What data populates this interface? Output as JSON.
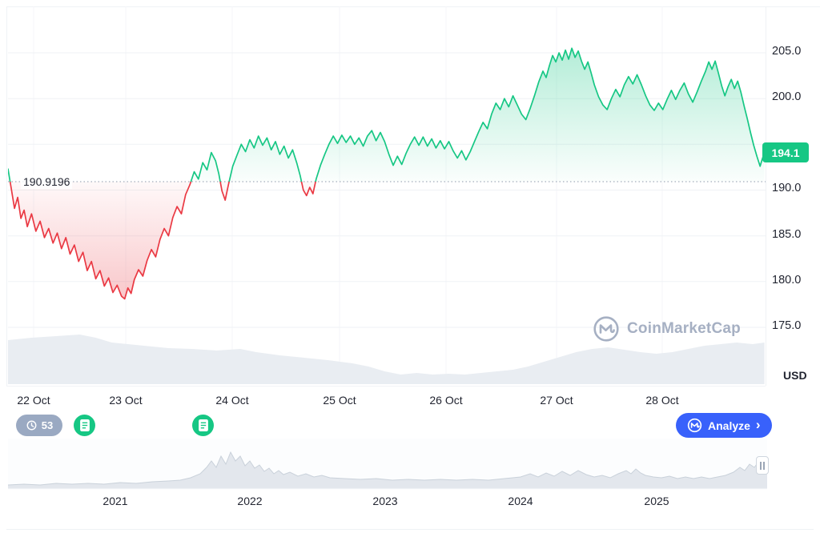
{
  "colors": {
    "green": "#16c784",
    "red": "#ea3943",
    "blue": "#3861fb",
    "pill_gray": "#9aa9c2",
    "grid": "#eff2f5",
    "axis_text": "#222531",
    "muted_text": "#a6b0c3",
    "volume_fill": "#e9edf2",
    "nav_fill": "#e3e7ed",
    "nav_stroke": "#c9d1da"
  },
  "chart": {
    "baseline_label": "190.9196",
    "current_price": "194.1",
    "unit": "USD",
    "watermark": "CoinMarketCap"
  },
  "toolbar": {
    "history_count": "53",
    "analyze_label": "Analyze",
    "analyze_chevron": "›"
  },
  "chart_data": {
    "type": "line",
    "title": "",
    "unit": "USD",
    "baseline": 190.9196,
    "current_price": 194.1,
    "ylim": [
      173,
      208
    ],
    "x_unit": "days since 22 Oct",
    "x_tick_labels": [
      "22 Oct",
      "23 Oct",
      "24 Oct",
      "25 Oct",
      "26 Oct",
      "27 Oct",
      "28 Oct"
    ],
    "y_ticks": [
      {
        "value": 205,
        "label": "205.0"
      },
      {
        "value": 200,
        "label": "200.0"
      },
      {
        "value": 190,
        "label": "190.0"
      },
      {
        "value": 185,
        "label": "185.0"
      },
      {
        "value": 180,
        "label": "180.0"
      },
      {
        "value": 175,
        "label": "175.0"
      }
    ],
    "y_grid_values": [
      205,
      200,
      195,
      190,
      185,
      180,
      175
    ],
    "price_points": [
      [
        -0.1,
        192.3
      ],
      [
        -0.07,
        190.2
      ],
      [
        -0.04,
        188.0
      ],
      [
        -0.01,
        189.2
      ],
      [
        0.02,
        186.9
      ],
      [
        0.05,
        187.8
      ],
      [
        0.08,
        186.0
      ],
      [
        0.12,
        187.4
      ],
      [
        0.16,
        185.5
      ],
      [
        0.2,
        186.6
      ],
      [
        0.24,
        184.8
      ],
      [
        0.28,
        185.8
      ],
      [
        0.32,
        184.2
      ],
      [
        0.36,
        185.3
      ],
      [
        0.4,
        183.6
      ],
      [
        0.44,
        184.8
      ],
      [
        0.48,
        183.0
      ],
      [
        0.52,
        184.0
      ],
      [
        0.56,
        182.2
      ],
      [
        0.6,
        183.2
      ],
      [
        0.64,
        181.2
      ],
      [
        0.68,
        182.2
      ],
      [
        0.72,
        180.3
      ],
      [
        0.76,
        181.2
      ],
      [
        0.8,
        179.5
      ],
      [
        0.84,
        180.4
      ],
      [
        0.88,
        178.8
      ],
      [
        0.92,
        179.6
      ],
      [
        0.96,
        178.4
      ],
      [
        0.99,
        178.1
      ],
      [
        1.02,
        179.3
      ],
      [
        1.05,
        178.7
      ],
      [
        1.08,
        180.2
      ],
      [
        1.12,
        181.3
      ],
      [
        1.16,
        180.6
      ],
      [
        1.2,
        182.3
      ],
      [
        1.24,
        183.5
      ],
      [
        1.28,
        182.7
      ],
      [
        1.32,
        184.6
      ],
      [
        1.36,
        185.8
      ],
      [
        1.4,
        185.0
      ],
      [
        1.44,
        187.0
      ],
      [
        1.48,
        188.2
      ],
      [
        1.52,
        187.4
      ],
      [
        1.56,
        189.5
      ],
      [
        1.6,
        190.6
      ],
      [
        1.64,
        192.0
      ],
      [
        1.68,
        191.2
      ],
      [
        1.72,
        193.0
      ],
      [
        1.76,
        192.2
      ],
      [
        1.8,
        194.1
      ],
      [
        1.84,
        193.2
      ],
      [
        1.87,
        191.8
      ],
      [
        1.9,
        189.9
      ],
      [
        1.93,
        188.9
      ],
      [
        1.96,
        190.6
      ],
      [
        2.0,
        192.6
      ],
      [
        2.04,
        193.8
      ],
      [
        2.08,
        195.0
      ],
      [
        2.12,
        194.2
      ],
      [
        2.16,
        195.5
      ],
      [
        2.2,
        194.6
      ],
      [
        2.24,
        195.9
      ],
      [
        2.28,
        194.9
      ],
      [
        2.32,
        195.7
      ],
      [
        2.36,
        194.4
      ],
      [
        2.4,
        195.3
      ],
      [
        2.44,
        193.9
      ],
      [
        2.48,
        194.8
      ],
      [
        2.52,
        193.5
      ],
      [
        2.56,
        194.4
      ],
      [
        2.6,
        192.9
      ],
      [
        2.63,
        191.6
      ],
      [
        2.66,
        190.0
      ],
      [
        2.69,
        189.4
      ],
      [
        2.72,
        190.3
      ],
      [
        2.75,
        189.6
      ],
      [
        2.78,
        191.2
      ],
      [
        2.82,
        192.7
      ],
      [
        2.86,
        193.9
      ],
      [
        2.9,
        195.0
      ],
      [
        2.94,
        195.9
      ],
      [
        2.98,
        195.1
      ],
      [
        3.02,
        196.0
      ],
      [
        3.06,
        195.2
      ],
      [
        3.1,
        195.9
      ],
      [
        3.14,
        195.0
      ],
      [
        3.18,
        195.7
      ],
      [
        3.22,
        194.8
      ],
      [
        3.26,
        195.9
      ],
      [
        3.3,
        196.5
      ],
      [
        3.34,
        195.4
      ],
      [
        3.38,
        196.3
      ],
      [
        3.42,
        195.3
      ],
      [
        3.46,
        193.9
      ],
      [
        3.5,
        192.7
      ],
      [
        3.54,
        193.7
      ],
      [
        3.58,
        192.8
      ],
      [
        3.62,
        194.0
      ],
      [
        3.66,
        195.0
      ],
      [
        3.7,
        195.8
      ],
      [
        3.74,
        194.9
      ],
      [
        3.78,
        195.8
      ],
      [
        3.82,
        194.8
      ],
      [
        3.86,
        195.6
      ],
      [
        3.9,
        194.6
      ],
      [
        3.94,
        195.4
      ],
      [
        3.98,
        194.5
      ],
      [
        4.02,
        195.3
      ],
      [
        4.06,
        194.3
      ],
      [
        4.1,
        193.5
      ],
      [
        4.14,
        194.3
      ],
      [
        4.18,
        193.3
      ],
      [
        4.22,
        194.2
      ],
      [
        4.26,
        195.3
      ],
      [
        4.3,
        196.4
      ],
      [
        4.34,
        197.4
      ],
      [
        4.38,
        196.7
      ],
      [
        4.42,
        198.3
      ],
      [
        4.46,
        199.5
      ],
      [
        4.5,
        198.8
      ],
      [
        4.54,
        200.0
      ],
      [
        4.58,
        199.1
      ],
      [
        4.62,
        200.3
      ],
      [
        4.66,
        199.3
      ],
      [
        4.7,
        198.3
      ],
      [
        4.74,
        197.7
      ],
      [
        4.78,
        198.9
      ],
      [
        4.82,
        200.3
      ],
      [
        4.86,
        201.8
      ],
      [
        4.9,
        203.0
      ],
      [
        4.93,
        202.3
      ],
      [
        4.96,
        203.6
      ],
      [
        4.99,
        204.7
      ],
      [
        5.02,
        204.0
      ],
      [
        5.05,
        205.0
      ],
      [
        5.08,
        204.2
      ],
      [
        5.11,
        205.3
      ],
      [
        5.14,
        204.3
      ],
      [
        5.17,
        205.5
      ],
      [
        5.2,
        204.5
      ],
      [
        5.23,
        205.2
      ],
      [
        5.26,
        204.1
      ],
      [
        5.29,
        203.2
      ],
      [
        5.32,
        204.0
      ],
      [
        5.35,
        202.8
      ],
      [
        5.38,
        201.5
      ],
      [
        5.42,
        200.2
      ],
      [
        5.46,
        199.3
      ],
      [
        5.5,
        198.8
      ],
      [
        5.54,
        200.0
      ],
      [
        5.58,
        201.0
      ],
      [
        5.62,
        200.2
      ],
      [
        5.66,
        201.5
      ],
      [
        5.7,
        202.4
      ],
      [
        5.74,
        201.6
      ],
      [
        5.78,
        202.6
      ],
      [
        5.82,
        201.5
      ],
      [
        5.86,
        200.3
      ],
      [
        5.9,
        199.3
      ],
      [
        5.94,
        198.7
      ],
      [
        5.98,
        199.5
      ],
      [
        6.02,
        198.8
      ],
      [
        6.06,
        199.9
      ],
      [
        6.1,
        200.9
      ],
      [
        6.14,
        199.9
      ],
      [
        6.18,
        200.9
      ],
      [
        6.22,
        201.7
      ],
      [
        6.26,
        200.5
      ],
      [
        6.3,
        199.6
      ],
      [
        6.34,
        200.7
      ],
      [
        6.38,
        201.9
      ],
      [
        6.42,
        203.0
      ],
      [
        6.45,
        204.0
      ],
      [
        6.48,
        203.2
      ],
      [
        6.51,
        204.1
      ],
      [
        6.54,
        202.8
      ],
      [
        6.57,
        201.4
      ],
      [
        6.6,
        200.3
      ],
      [
        6.63,
        201.3
      ],
      [
        6.66,
        202.1
      ],
      [
        6.69,
        201.1
      ],
      [
        6.72,
        201.9
      ],
      [
        6.75,
        200.7
      ],
      [
        6.78,
        199.2
      ],
      [
        6.81,
        197.8
      ],
      [
        6.84,
        196.3
      ],
      [
        6.87,
        194.9
      ],
      [
        6.9,
        193.7
      ],
      [
        6.93,
        192.6
      ],
      [
        6.95,
        193.4
      ],
      [
        6.97,
        194.1
      ]
    ],
    "volume_profile": [
      [
        -0.1,
        55
      ],
      [
        0.12,
        58
      ],
      [
        0.35,
        60
      ],
      [
        0.57,
        62
      ],
      [
        0.72,
        58
      ],
      [
        0.87,
        52
      ],
      [
        1.02,
        50
      ],
      [
        1.17,
        48
      ],
      [
        1.4,
        45
      ],
      [
        1.62,
        44
      ],
      [
        1.85,
        42
      ],
      [
        2.07,
        44
      ],
      [
        2.22,
        40
      ],
      [
        2.44,
        36
      ],
      [
        2.67,
        33
      ],
      [
        2.89,
        30
      ],
      [
        3.12,
        26
      ],
      [
        3.27,
        22
      ],
      [
        3.42,
        16
      ],
      [
        3.57,
        12
      ],
      [
        3.72,
        14
      ],
      [
        3.87,
        12
      ],
      [
        4.02,
        13
      ],
      [
        4.17,
        12
      ],
      [
        4.32,
        14
      ],
      [
        4.47,
        16
      ],
      [
        4.62,
        18
      ],
      [
        4.76,
        22
      ],
      [
        4.91,
        28
      ],
      [
        5.06,
        34
      ],
      [
        5.21,
        40
      ],
      [
        5.36,
        44
      ],
      [
        5.51,
        46
      ],
      [
        5.66,
        43
      ],
      [
        5.81,
        40
      ],
      [
        5.96,
        38
      ],
      [
        6.11,
        40
      ],
      [
        6.26,
        44
      ],
      [
        6.41,
        48
      ],
      [
        6.56,
        50
      ],
      [
        6.71,
        52
      ],
      [
        6.86,
        50
      ],
      [
        6.97,
        52
      ]
    ],
    "navigator": {
      "years": [
        "2021",
        "2022",
        "2023",
        "2024",
        "2025"
      ],
      "profile": [
        [
          0,
          4
        ],
        [
          20,
          5
        ],
        [
          40,
          4
        ],
        [
          60,
          6
        ],
        [
          80,
          5
        ],
        [
          100,
          6
        ],
        [
          120,
          5
        ],
        [
          140,
          7
        ],
        [
          160,
          6
        ],
        [
          180,
          8
        ],
        [
          200,
          9
        ],
        [
          215,
          10
        ],
        [
          228,
          13
        ],
        [
          240,
          18
        ],
        [
          248,
          26
        ],
        [
          254,
          34
        ],
        [
          260,
          26
        ],
        [
          266,
          40
        ],
        [
          272,
          30
        ],
        [
          278,
          45
        ],
        [
          284,
          34
        ],
        [
          290,
          40
        ],
        [
          296,
          28
        ],
        [
          302,
          34
        ],
        [
          308,
          25
        ],
        [
          314,
          29
        ],
        [
          320,
          21
        ],
        [
          326,
          25
        ],
        [
          332,
          18
        ],
        [
          338,
          22
        ],
        [
          344,
          17
        ],
        [
          352,
          20
        ],
        [
          362,
          15
        ],
        [
          372,
          18
        ],
        [
          382,
          14
        ],
        [
          392,
          16
        ],
        [
          402,
          13
        ],
        [
          420,
          12
        ],
        [
          440,
          11
        ],
        [
          460,
          12
        ],
        [
          480,
          10
        ],
        [
          500,
          11
        ],
        [
          520,
          10
        ],
        [
          540,
          11
        ],
        [
          560,
          10
        ],
        [
          580,
          11
        ],
        [
          600,
          10
        ],
        [
          620,
          12
        ],
        [
          640,
          14
        ],
        [
          652,
          18
        ],
        [
          662,
          14
        ],
        [
          672,
          19
        ],
        [
          682,
          15
        ],
        [
          692,
          21
        ],
        [
          702,
          16
        ],
        [
          712,
          22
        ],
        [
          722,
          17
        ],
        [
          732,
          14
        ],
        [
          742,
          16
        ],
        [
          752,
          13
        ],
        [
          762,
          18
        ],
        [
          772,
          22
        ],
        [
          778,
          18
        ],
        [
          784,
          24
        ],
        [
          790,
          19
        ],
        [
          796,
          16
        ],
        [
          806,
          14
        ],
        [
          816,
          13
        ],
        [
          826,
          15
        ],
        [
          836,
          12
        ],
        [
          846,
          14
        ],
        [
          856,
          12
        ],
        [
          866,
          14
        ],
        [
          876,
          12
        ],
        [
          886,
          14
        ],
        [
          896,
          16
        ],
        [
          906,
          20
        ],
        [
          914,
          26
        ],
        [
          920,
          22
        ],
        [
          926,
          30
        ],
        [
          932,
          26
        ],
        [
          938,
          34
        ],
        [
          944,
          30
        ],
        [
          948,
          36
        ]
      ]
    }
  }
}
